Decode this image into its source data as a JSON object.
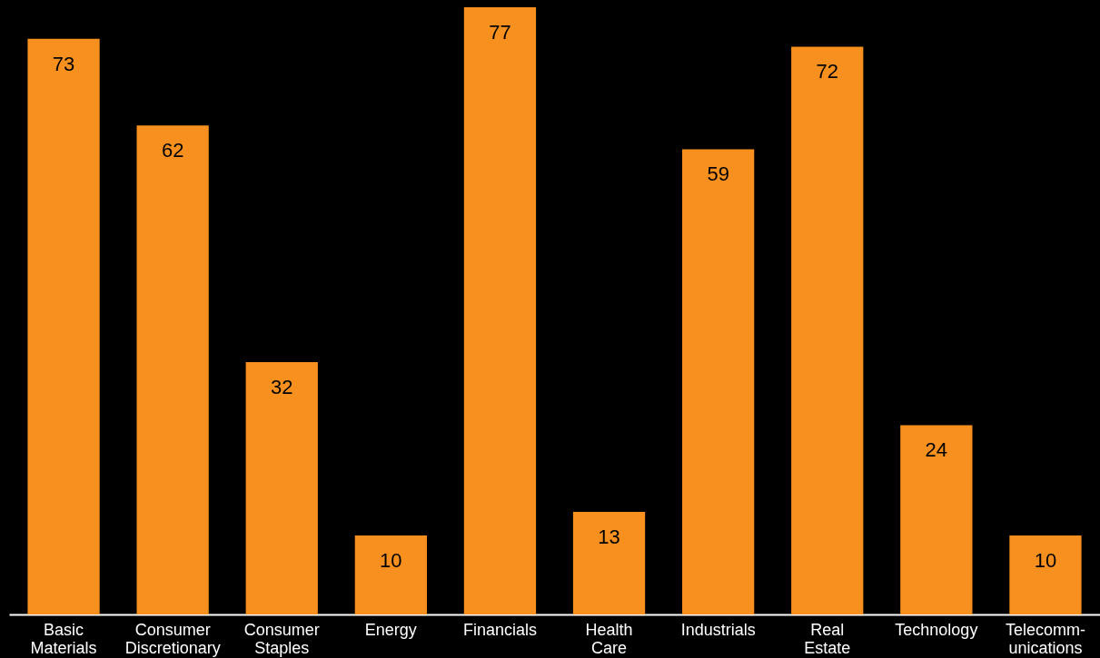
{
  "chart_data": {
    "type": "bar",
    "categories": [
      "Basic\nMaterials",
      "Consumer\nDiscretionary",
      "Consumer\nStaples",
      "Energy",
      "Financials",
      "Health\nCare",
      "Industrials",
      "Real\nEstate",
      "Technology",
      "Telecomm-\nunications"
    ],
    "values": [
      73,
      62,
      32,
      10,
      77,
      13,
      59,
      72,
      24,
      10
    ],
    "color": "#f7901e",
    "data_labels": true
  }
}
